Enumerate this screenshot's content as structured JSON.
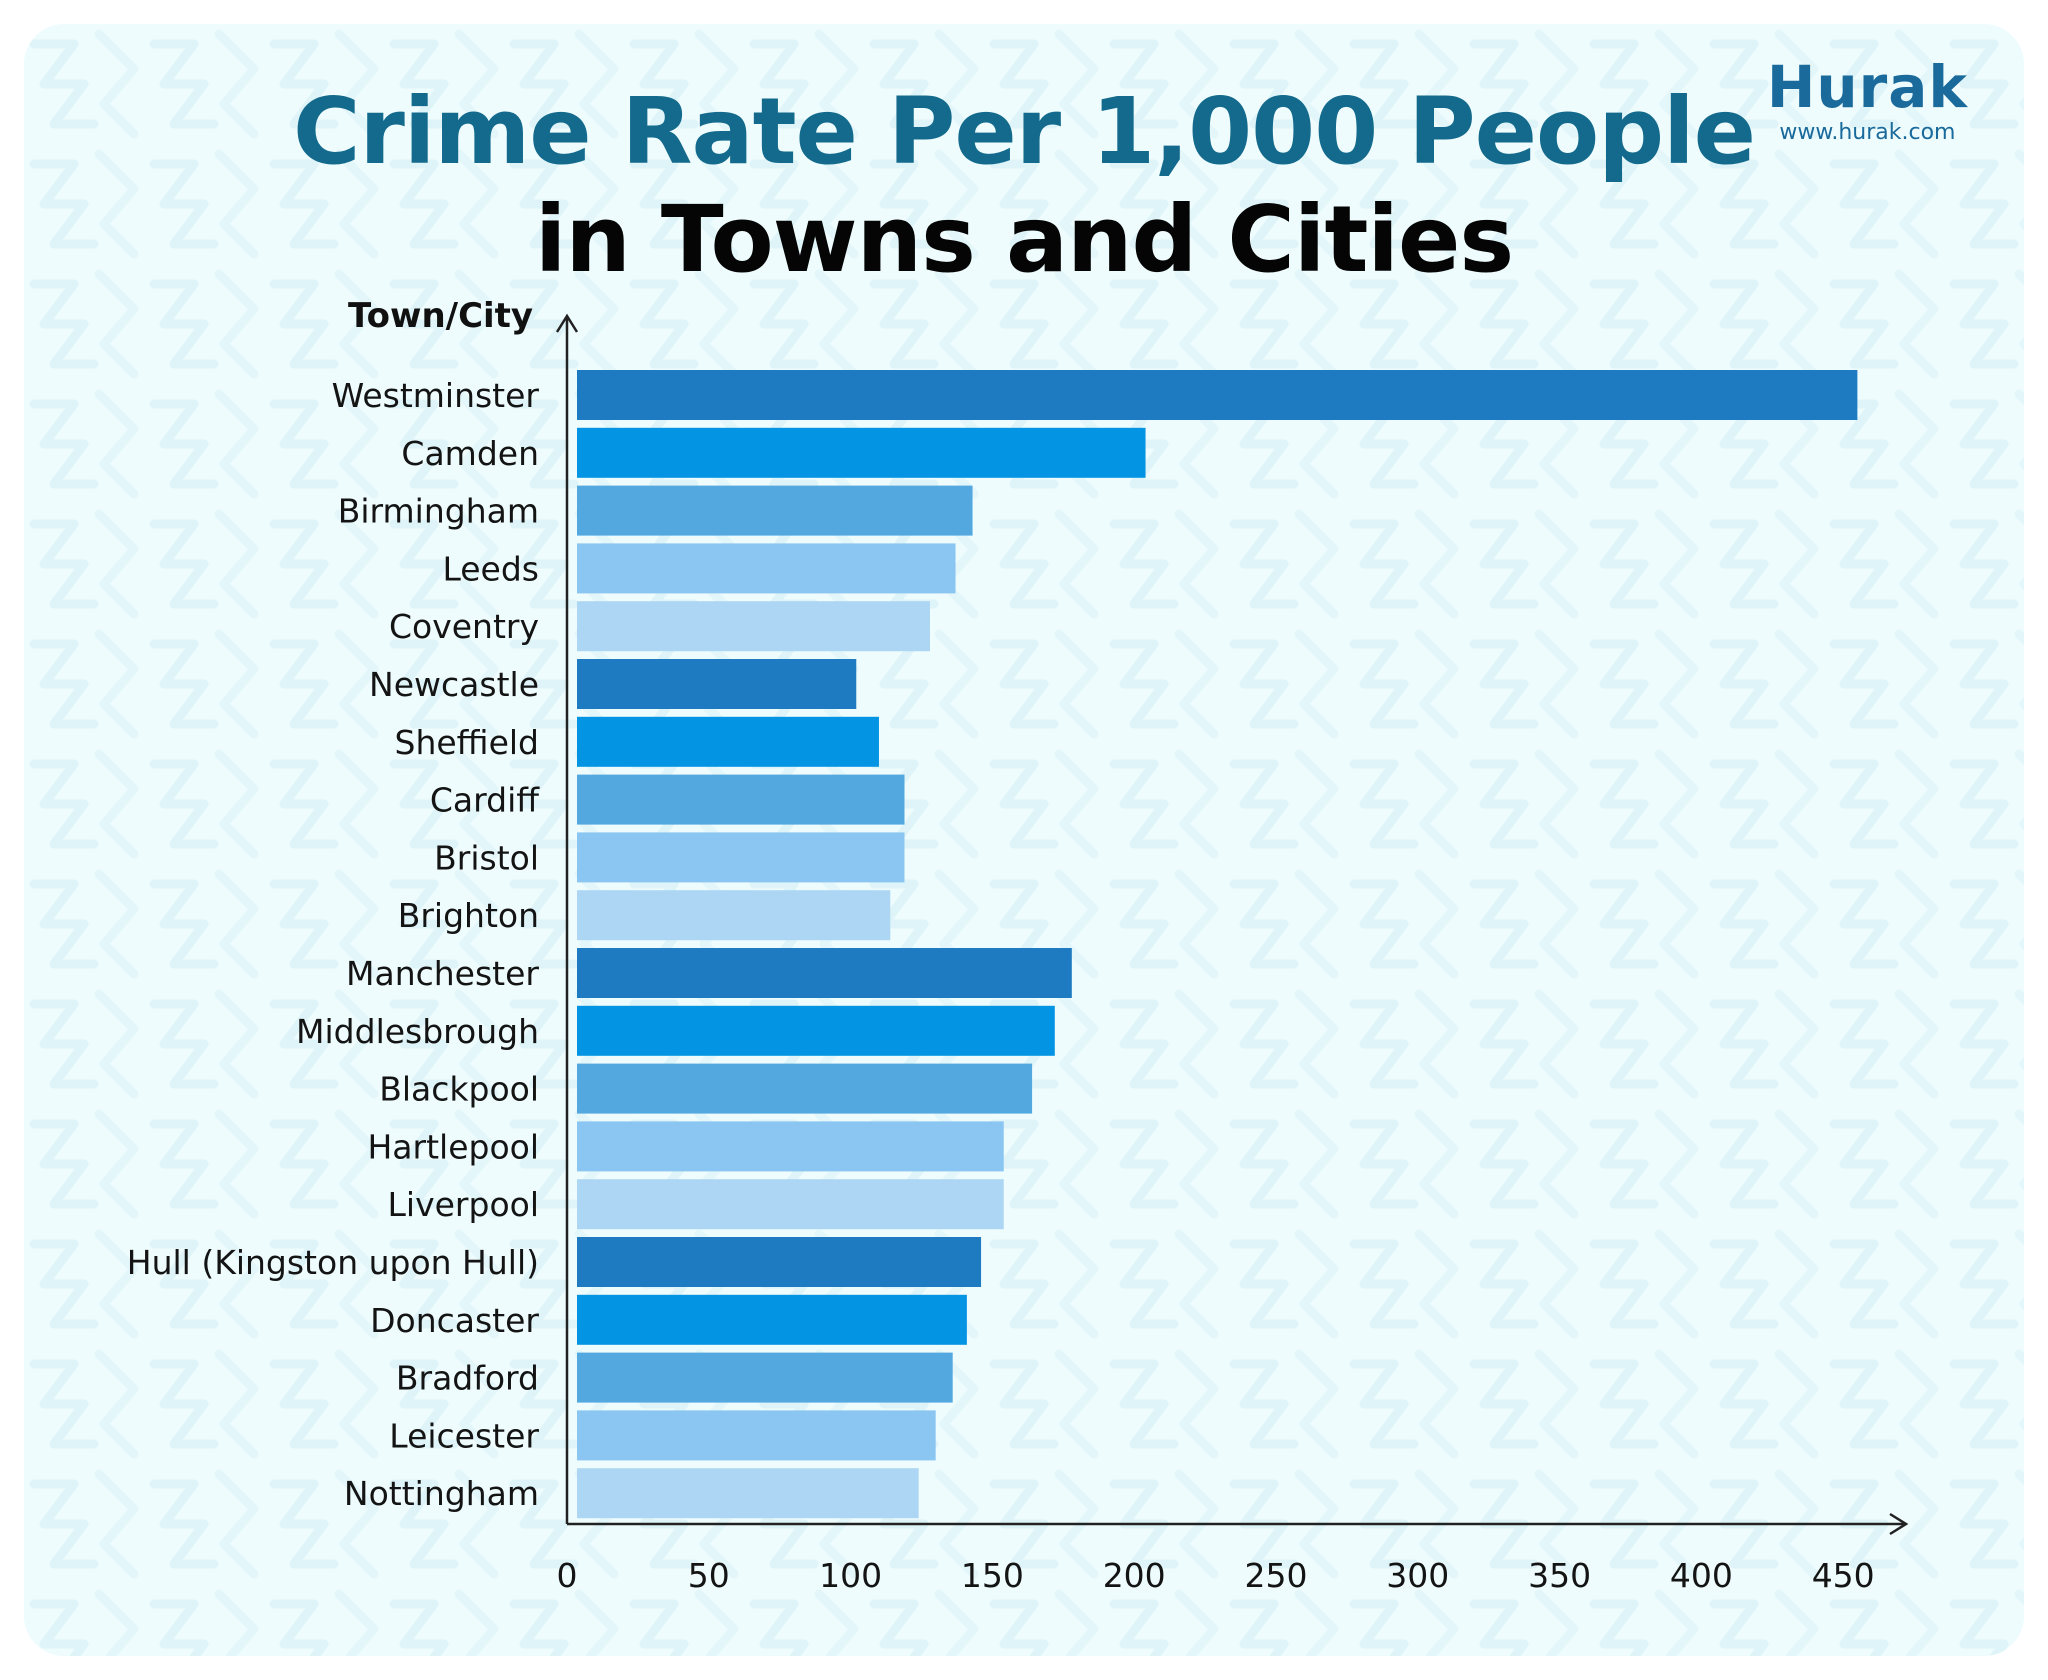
{
  "header": {
    "title_line1": "Crime Rate Per 1,000 People",
    "title_line2": "in Towns and Cities"
  },
  "brand": {
    "name": "Hurak",
    "url": "www.hurak.com"
  },
  "colors": {
    "title_accent": "#136a8c",
    "background": "#eefcfd",
    "bar_palette": [
      "#1f7bc1",
      "#0494e4",
      "#53a8e0",
      "#8ac6f1",
      "#acd6f3"
    ]
  },
  "chart_data": {
    "type": "bar",
    "orientation": "horizontal",
    "ylabel": "Town/City",
    "xlabel": "",
    "xlim": [
      0,
      450
    ],
    "x_ticks": [
      0,
      50,
      100,
      150,
      200,
      250,
      300,
      350,
      400,
      450
    ],
    "grid": false,
    "categories": [
      "Westminster",
      "Camden",
      "Birmingham",
      "Leeds",
      "Coventry",
      "Newcastle",
      "Sheffield",
      "Cardiff",
      "Bristol",
      "Brighton",
      "Manchester",
      "Middlesbrough",
      "Blackpool",
      "Hartlepool",
      "Liverpool",
      "Hull (Kingston upon Hull)",
      "Doncaster",
      "Bradford",
      "Leicester",
      "Nottingham"
    ],
    "values": [
      455,
      204,
      143,
      137,
      128,
      102,
      110,
      119,
      119,
      114,
      178,
      172,
      164,
      154,
      154,
      146,
      141,
      136,
      130,
      124
    ]
  }
}
